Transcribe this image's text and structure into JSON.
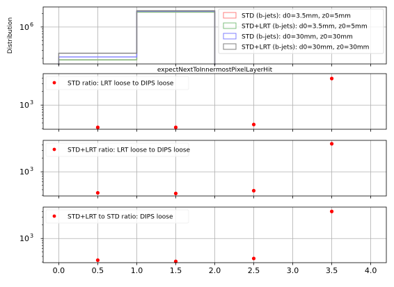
{
  "chart_data": [
    {
      "type": "histogram",
      "ylabel": "Distribution",
      "xlabel": "expectNextToInnermostPixelLayerHit",
      "yscale": "log",
      "ylim": [
        150000,
        2800000
      ],
      "yticks": [
        {
          "value": 1000000,
          "base": "10",
          "exp": "6"
        }
      ],
      "xlim": [
        -0.2,
        4.2
      ],
      "grid": true,
      "legend_position": "upper right",
      "bins": [
        0,
        1,
        2
      ],
      "series": [
        {
          "name": "STD (b-jets): d0=3.5mm, z0=5mm",
          "color": "#ff7f7f",
          "values": [
            185000,
            2150000
          ]
        },
        {
          "name": "STD+LRT (b-jets): d0=3.5mm, z0=5mm",
          "color": "#7fbf7f",
          "values": [
            185000,
            2150000
          ]
        },
        {
          "name": "STD (b-jets): d0=30mm, z0=30mm",
          "color": "#7f7fff",
          "values": [
            215000,
            2250000
          ]
        },
        {
          "name": "STD+LRT (b-jets): d0=30mm, z0=30mm",
          "color": "#7f7f7f",
          "values": [
            260000,
            2300000
          ]
        }
      ]
    },
    {
      "type": "scatter",
      "yscale": "log",
      "ylim": [
        290,
        5000
      ],
      "yticks": [
        {
          "value": 1000,
          "base": "10",
          "exp": "3"
        }
      ],
      "xlim": [
        -0.2,
        4.2
      ],
      "grid": true,
      "legend_position": "upper left",
      "series": [
        {
          "name": "STD ratio: LRT loose to DIPS loose",
          "color": "#ff0000",
          "x": [
            0.5,
            1.5,
            2.5,
            3.5
          ],
          "y": [
            320,
            320,
            370,
            3900
          ]
        }
      ]
    },
    {
      "type": "scatter",
      "yscale": "log",
      "ylim": [
        290,
        5000
      ],
      "yticks": [
        {
          "value": 1000,
          "base": "10",
          "exp": "3"
        }
      ],
      "xlim": [
        -0.2,
        4.2
      ],
      "grid": true,
      "legend_position": "upper left",
      "series": [
        {
          "name": "STD+LRT ratio: LRT loose to DIPS loose",
          "color": "#ff0000",
          "x": [
            0.5,
            1.5,
            2.5,
            3.5
          ],
          "y": [
            340,
            330,
            380,
            4200
          ]
        }
      ]
    },
    {
      "type": "scatter",
      "yscale": "log",
      "ylim": [
        290,
        5000
      ],
      "yticks": [
        {
          "value": 1000,
          "base": "10",
          "exp": "3"
        }
      ],
      "xlim": [
        -0.2,
        4.2
      ],
      "grid": true,
      "legend_position": "upper left",
      "xticks": [
        0.0,
        0.5,
        1.0,
        1.5,
        2.0,
        2.5,
        3.0,
        3.5,
        4.0
      ],
      "xtick_labels": [
        "0.0",
        "0.5",
        "1.0",
        "1.5",
        "2.0",
        "2.5",
        "3.0",
        "3.5",
        "4.0"
      ],
      "series": [
        {
          "name": "STD+LRT to STD ratio: DIPS loose",
          "color": "#ff0000",
          "x": [
            0.5,
            1.5,
            2.5,
            3.5
          ],
          "y": [
            330,
            310,
            360,
            4000
          ]
        }
      ]
    }
  ]
}
